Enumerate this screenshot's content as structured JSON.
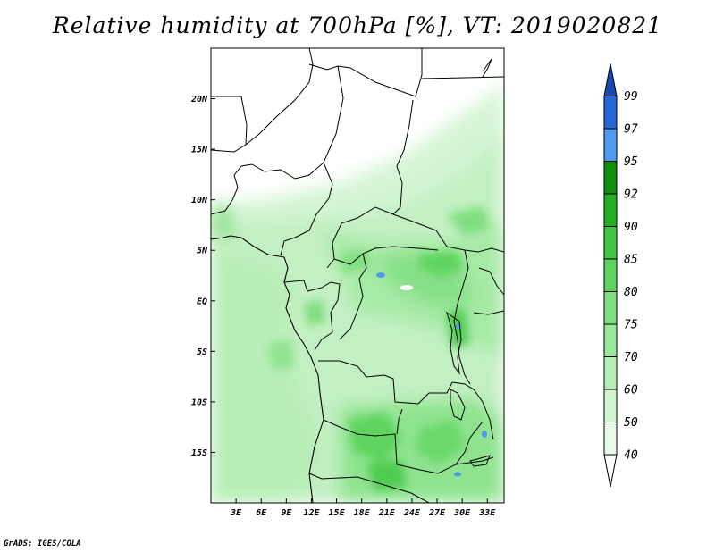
{
  "title": "Relative humidity at 700hPa [%], VT: 2019020821",
  "credit": "GrADS: IGES/COLA",
  "map": {
    "variable": "Relative humidity at 700hPa",
    "units": "%",
    "valid_time": "2019020821",
    "lon_range": [
      0,
      35
    ],
    "lat_range": [
      -20,
      25
    ],
    "x_ticks": [
      {
        "value": 3,
        "label": "3E"
      },
      {
        "value": 6,
        "label": "6E"
      },
      {
        "value": 9,
        "label": "9E"
      },
      {
        "value": 12,
        "label": "12E"
      },
      {
        "value": 15,
        "label": "15E"
      },
      {
        "value": 18,
        "label": "18E"
      },
      {
        "value": 21,
        "label": "21E"
      },
      {
        "value": 24,
        "label": "24E"
      },
      {
        "value": 27,
        "label": "27E"
      },
      {
        "value": 30,
        "label": "30E"
      },
      {
        "value": 33,
        "label": "33E"
      }
    ],
    "y_ticks": [
      {
        "value": 20,
        "label": "20N"
      },
      {
        "value": 15,
        "label": "15N"
      },
      {
        "value": 10,
        "label": "10N"
      },
      {
        "value": 5,
        "label": "5N"
      },
      {
        "value": 0,
        "label": "EQ"
      },
      {
        "value": -5,
        "label": "5S"
      },
      {
        "value": -10,
        "label": "10S"
      },
      {
        "value": -15,
        "label": "15S"
      }
    ]
  },
  "colorbar": {
    "levels": [
      "40",
      "50",
      "60",
      "70",
      "75",
      "80",
      "85",
      "90",
      "92",
      "95",
      "97",
      "99"
    ],
    "colors": [
      "#ffffff",
      "#e6fae6",
      "#d0f5d0",
      "#b6efb6",
      "#9ae89a",
      "#7fdf7f",
      "#5fd45f",
      "#3fc63f",
      "#22b022",
      "#0e8f0e",
      "#4f9af2",
      "#2268d8",
      "#1848b4"
    ]
  }
}
